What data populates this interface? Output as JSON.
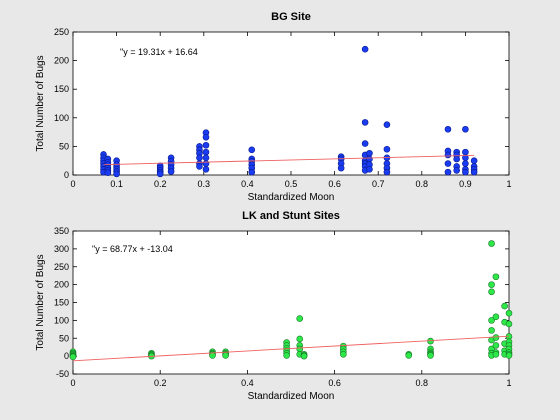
{
  "chart_data": [
    {
      "type": "scatter",
      "title": "BG Site",
      "xlabel": "Standardized Moon",
      "ylabel": "Total Number of Bugs",
      "xlim": [
        0,
        1
      ],
      "ylim": [
        0,
        250
      ],
      "xticks": [
        0,
        0.1,
        0.2,
        0.3,
        0.4,
        0.5,
        0.6,
        0.7,
        0.8,
        0.9,
        1
      ],
      "yticks": [
        0,
        50,
        100,
        150,
        200,
        250
      ],
      "xtick_labels": [
        "0",
        "0.1",
        "0.2",
        "0.3",
        "0.4",
        "0.5",
        "0.6",
        "0.7",
        "0.8",
        "0.9",
        "1"
      ],
      "ytick_labels": [
        "0",
        "50",
        "100",
        "150",
        "200",
        "250"
      ],
      "grid": false,
      "annotation": "\"y = 19.31x + 16.64",
      "marker_color": "#1a3cf0",
      "marker_edge": "#0a1a90",
      "fit_color": "#f06060",
      "fit": {
        "x": [
          0.07,
          0.92
        ],
        "y": [
          18.0,
          34.4
        ]
      },
      "points": {
        "x": [
          0.07,
          0.07,
          0.07,
          0.07,
          0.07,
          0.07,
          0.07,
          0.08,
          0.08,
          0.08,
          0.08,
          0.08,
          0.08,
          0.1,
          0.1,
          0.1,
          0.1,
          0.1,
          0.1,
          0.2,
          0.2,
          0.2,
          0.2,
          0.2,
          0.225,
          0.225,
          0.225,
          0.225,
          0.225,
          0.29,
          0.29,
          0.29,
          0.29,
          0.29,
          0.29,
          0.305,
          0.305,
          0.305,
          0.305,
          0.305,
          0.305,
          0.305,
          0.41,
          0.41,
          0.41,
          0.41,
          0.41,
          0.41,
          0.615,
          0.615,
          0.615,
          0.615,
          0.67,
          0.67,
          0.67,
          0.67,
          0.67,
          0.67,
          0.67,
          0.67,
          0.68,
          0.68,
          0.68,
          0.68,
          0.72,
          0.72,
          0.72,
          0.72,
          0.72,
          0.72,
          0.86,
          0.86,
          0.86,
          0.86,
          0.86,
          0.88,
          0.88,
          0.88,
          0.88,
          0.88,
          0.9,
          0.9,
          0.9,
          0.9,
          0.9,
          0.9,
          0.92,
          0.92,
          0.92,
          0.92
        ],
        "y": [
          36,
          30,
          25,
          20,
          15,
          10,
          5,
          28,
          22,
          18,
          12,
          8,
          4,
          25,
          18,
          14,
          10,
          6,
          2,
          16,
          12,
          8,
          5,
          2,
          30,
          24,
          18,
          12,
          6,
          50,
          44,
          38,
          30,
          20,
          15,
          74,
          66,
          52,
          40,
          30,
          20,
          10,
          44,
          28,
          24,
          18,
          12,
          5,
          32,
          28,
          20,
          12,
          220,
          92,
          55,
          35,
          25,
          20,
          15,
          8,
          38,
          28,
          18,
          10,
          88,
          45,
          30,
          20,
          12,
          5,
          80,
          42,
          35,
          20,
          5,
          40,
          35,
          28,
          15,
          8,
          80,
          40,
          30,
          20,
          10,
          5,
          25,
          15,
          10,
          5
        ]
      }
    },
    {
      "type": "scatter",
      "title": "LK and Stunt Sites",
      "xlabel": "Standardized Moon",
      "ylabel": "Total Number of Bugs",
      "xlim": [
        0,
        1
      ],
      "ylim": [
        -50,
        350
      ],
      "xticks": [
        0,
        0.2,
        0.4,
        0.6,
        0.8,
        1
      ],
      "yticks": [
        -50,
        0,
        50,
        100,
        150,
        200,
        250,
        300,
        350
      ],
      "xtick_labels": [
        "0",
        "0.2",
        "0.4",
        "0.6",
        "0.8",
        "1"
      ],
      "ytick_labels": [
        "-50",
        "0",
        "50",
        "100",
        "150",
        "200",
        "250",
        "300",
        "350"
      ],
      "grid": false,
      "annotation": "\"y = 68.77x + -13.04",
      "marker_color": "#2ee84a",
      "marker_edge": "#147a26",
      "fit_color": "#f06060",
      "fit": {
        "x": [
          0,
          1
        ],
        "y": [
          -13.04,
          55.73
        ]
      },
      "points": {
        "x": [
          0,
          0,
          0,
          0,
          0,
          0,
          0.18,
          0.18,
          0.18,
          0.18,
          0.32,
          0.32,
          0.32,
          0.32,
          0.35,
          0.35,
          0.35,
          0.35,
          0.49,
          0.49,
          0.49,
          0.49,
          0.49,
          0.49,
          0.52,
          0.52,
          0.52,
          0.52,
          0.52,
          0.53,
          0.53,
          0.53,
          0.62,
          0.62,
          0.62,
          0.62,
          0.77,
          0.77,
          0.82,
          0.82,
          0.82,
          0.82,
          0.82,
          0.82,
          0.96,
          0.96,
          0.96,
          0.96,
          0.96,
          0.96,
          0.96,
          0.96,
          0.96,
          0.97,
          0.97,
          0.97,
          0.97,
          0.97,
          0.97,
          0.99,
          0.99,
          0.99,
          0.99,
          0.99,
          1,
          1,
          1,
          1,
          1,
          1,
          1,
          1,
          1
        ],
        "y": [
          12,
          8,
          5,
          2,
          0,
          -2,
          8,
          5,
          2,
          0,
          12,
          8,
          5,
          2,
          12,
          8,
          5,
          2,
          38,
          30,
          22,
          15,
          8,
          2,
          105,
          48,
          30,
          20,
          5,
          5,
          2,
          0,
          28,
          20,
          12,
          5,
          5,
          2,
          42,
          20,
          12,
          8,
          5,
          2,
          315,
          200,
          180,
          100,
          72,
          45,
          20,
          8,
          2,
          222,
          110,
          52,
          30,
          10,
          5,
          140,
          95,
          35,
          15,
          5,
          120,
          90,
          55,
          40,
          30,
          20,
          10,
          5,
          2
        ]
      }
    }
  ]
}
